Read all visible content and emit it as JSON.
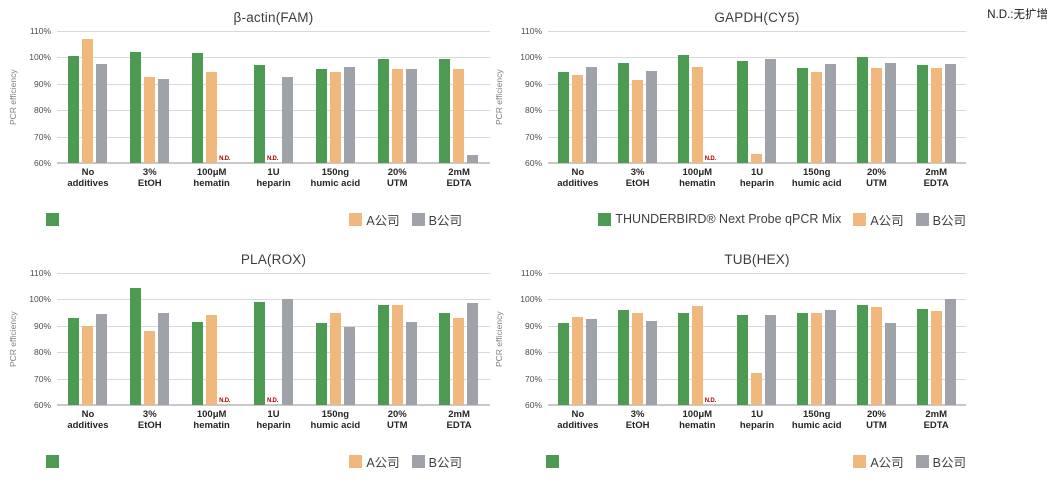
{
  "annotation": {
    "nd_note": "N.D.:无扩增"
  },
  "colors": {
    "series": [
      "#4d9a53",
      "#f0b87c",
      "#9fa3a9"
    ],
    "nd_text": "#b30000",
    "gridline": "#d9d9d9",
    "axis_line": "#c8c8c8",
    "tick_text": "#4d4d4d",
    "title_text": "#3d3d3d"
  },
  "legend_labels": {
    "series1": "THUNDERBIRD® Next Probe qPCR Mix",
    "series2": "A公司",
    "series3": "B公司"
  },
  "chart_data": [
    {
      "type": "bar",
      "title": "β-actin(FAM)",
      "ylabel": "PCR efficiency",
      "ylim": [
        60,
        110
      ],
      "yticks": [
        "110%",
        "100%",
        "90%",
        "80%",
        "70%",
        "60%"
      ],
      "grid": true,
      "nd_label": "N.D.",
      "legend_position": "bottom",
      "show_series1_legend_label": false,
      "categories": [
        "No\nadditives",
        "3%\nEtOH",
        "100μM\nhematin",
        "1U\nheparin",
        "150ng\nhumic acid",
        "20%\nUTM",
        "2mM\nEDTA"
      ],
      "series": [
        {
          "name": "THUNDERBIRD® Next Probe qPCR Mix",
          "values": [
            100.5,
            102,
            101.5,
            97,
            95.5,
            99.5,
            99.5
          ]
        },
        {
          "name": "A公司",
          "values": [
            107,
            92.5,
            94.5,
            null,
            94.5,
            95.5,
            95.5
          ]
        },
        {
          "name": "B公司",
          "values": [
            97.5,
            92,
            null,
            92.5,
            96.5,
            95.5,
            63
          ]
        }
      ]
    },
    {
      "type": "bar",
      "title": "GAPDH(CY5)",
      "ylabel": "PCR efficiency",
      "ylim": [
        60,
        110
      ],
      "yticks": [
        "110%",
        "100%",
        "90%",
        "80%",
        "70%",
        "60%"
      ],
      "grid": true,
      "nd_label": "N.D.",
      "legend_position": "bottom",
      "show_series1_legend_label": true,
      "categories": [
        "No\nadditives",
        "3%\nEtOH",
        "100μM\nhematin",
        "1U\nheparin",
        "150ng\nhumic acid",
        "20%\nUTM",
        "2mM\nEDTA"
      ],
      "series": [
        {
          "name": "THUNDERBIRD® Next Probe qPCR Mix",
          "values": [
            94.5,
            98,
            101,
            98.5,
            96,
            100,
            97
          ]
        },
        {
          "name": "A公司",
          "values": [
            93.5,
            91.5,
            96.5,
            63.5,
            94.5,
            96,
            96
          ]
        },
        {
          "name": "B公司",
          "values": [
            96.5,
            95,
            null,
            99.5,
            97.5,
            98,
            97.5
          ]
        }
      ]
    },
    {
      "type": "bar",
      "title": "PLA(ROX)",
      "ylabel": "PCR efficiency",
      "ylim": [
        60,
        110
      ],
      "yticks": [
        "110%",
        "100%",
        "90%",
        "80%",
        "70%",
        "60%"
      ],
      "grid": true,
      "nd_label": "N.D.",
      "legend_position": "bottom",
      "show_series1_legend_label": false,
      "categories": [
        "No\nadditives",
        "3%\nEtOH",
        "100μM\nhematin",
        "1U\nheparin",
        "150ng\nhumic acid",
        "20%\nUTM",
        "2mM\nEDTA"
      ],
      "series": [
        {
          "name": "THUNDERBIRD® Next Probe qPCR Mix",
          "values": [
            93,
            104.5,
            91.5,
            99,
            91,
            98,
            95
          ]
        },
        {
          "name": "A公司",
          "values": [
            90,
            88,
            94,
            null,
            95,
            98,
            93
          ]
        },
        {
          "name": "B公司",
          "values": [
            94.5,
            95,
            null,
            100,
            89.5,
            91.5,
            98.5
          ]
        }
      ]
    },
    {
      "type": "bar",
      "title": "TUB(HEX)",
      "ylabel": "PCR efficiency",
      "ylim": [
        60,
        110
      ],
      "yticks": [
        "110%",
        "100%",
        "90%",
        "80%",
        "70%",
        "60%"
      ],
      "grid": true,
      "nd_label": "N.D.",
      "legend_position": "bottom",
      "show_series1_legend_label": false,
      "categories": [
        "No\nadditives",
        "3%\nEtOH",
        "100μM\nhematin",
        "1U\nheparin",
        "150ng\nhumic acid",
        "20%\nUTM",
        "2mM\nEDTA"
      ],
      "series": [
        {
          "name": "THUNDERBIRD® Next Probe qPCR Mix",
          "values": [
            91,
            96,
            95,
            94,
            95,
            98,
            96.5
          ]
        },
        {
          "name": "A公司",
          "values": [
            93.5,
            95,
            97.5,
            72,
            95,
            97,
            95.5
          ]
        },
        {
          "name": "B公司",
          "values": [
            92.5,
            92,
            null,
            94,
            96,
            91,
            100
          ]
        }
      ]
    }
  ]
}
